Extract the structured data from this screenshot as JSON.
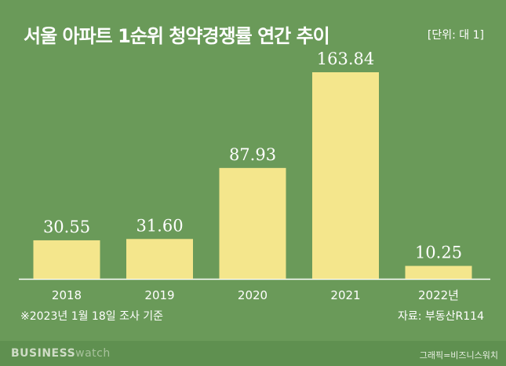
{
  "header": {
    "title": "서울 아파트 1순위 청약경쟁률 연간 추이",
    "unit": "[단위: 대 1]"
  },
  "notes": {
    "footnote": "※2023년 1월 18일 조사 기준",
    "source": "자료: 부동산R114"
  },
  "footer": {
    "brand_bold": "BUSINESS",
    "brand_light": "watch",
    "credit": "그래픽=비즈니스워치"
  },
  "colors": {
    "background": "#6a9a59",
    "bar": "#f4e68c",
    "label_text": "#ffffff"
  },
  "chart_data": {
    "type": "bar",
    "categories": [
      "2018",
      "2019",
      "2020",
      "2021",
      "2022년"
    ],
    "values": [
      30.55,
      31.6,
      87.93,
      163.84,
      10.25
    ],
    "data_labels": [
      "30.55",
      "31.60",
      "87.93",
      "163.84",
      "10.25"
    ],
    "title": "서울 아파트 1순위 청약경쟁률 연간 추이",
    "xlabel": "",
    "ylabel": "",
    "ylim": [
      0,
      163.84
    ],
    "grid": false,
    "legend": "none"
  }
}
